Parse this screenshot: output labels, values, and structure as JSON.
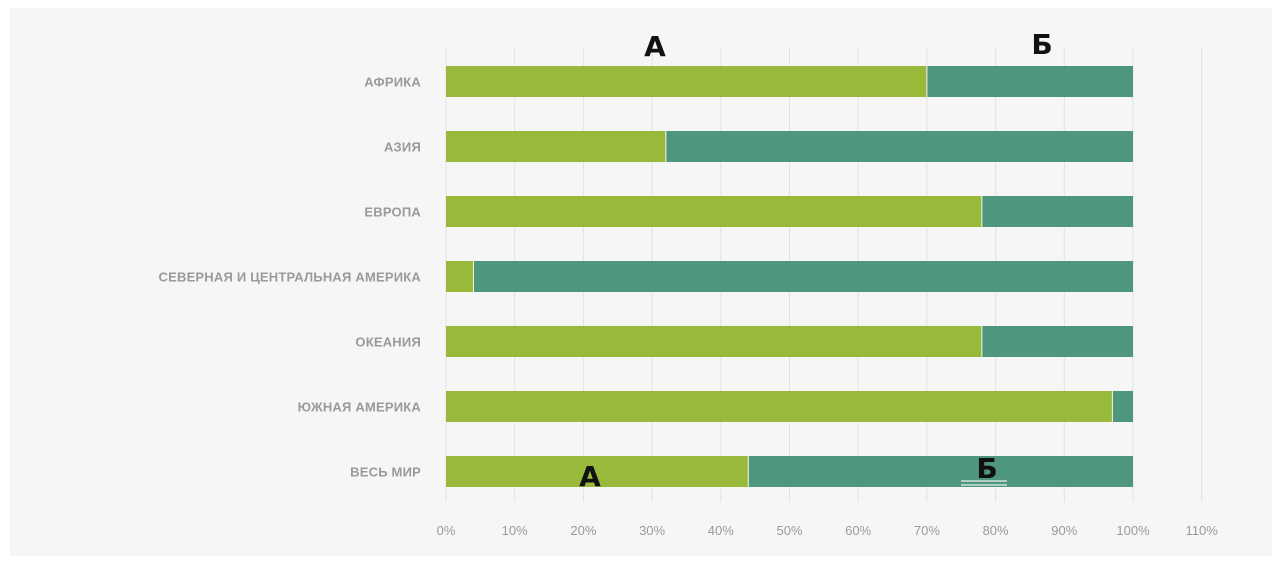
{
  "chart_data": {
    "type": "bar",
    "orientation": "horizontal",
    "stacked": true,
    "categories": [
      "АФРИКА",
      "АЗИЯ",
      "ЕВРОПА",
      "СЕВЕРНАЯ И ЦЕНТРАЛЬНАЯ АМЕРИКА",
      "ОКЕАНИЯ",
      "ЮЖНАЯ АМЕРИКА",
      "ВЕСЬ МИР"
    ],
    "series": [
      {
        "values": [
          70,
          32,
          78,
          4,
          78,
          97,
          44
        ]
      },
      {
        "values": [
          30,
          68,
          22,
          96,
          22,
          3,
          56
        ]
      }
    ],
    "xlim": [
      0,
      110
    ],
    "xticks": [
      "0%",
      "10%",
      "20%",
      "30%",
      "40%",
      "50%",
      "60%",
      "70%",
      "80%",
      "90%",
      "100%",
      "110%"
    ],
    "grid": true,
    "annotations": [
      {
        "text": "А",
        "category": "АФРИКА",
        "near": "above series 1"
      },
      {
        "text": "Б",
        "category": "АФРИКА",
        "near": "above series 2"
      },
      {
        "text": "А",
        "category": "ВЕСЬ МИР",
        "near": "on series 1"
      },
      {
        "text": "Б",
        "category": "ВЕСЬ МИР",
        "near": "on series 2"
      }
    ]
  },
  "colors": {
    "series_1": "#98b93a",
    "series_2": "#4e977c",
    "grid": "#e2e2e2",
    "label": "#9a9a9a",
    "annotation": "#111111"
  }
}
